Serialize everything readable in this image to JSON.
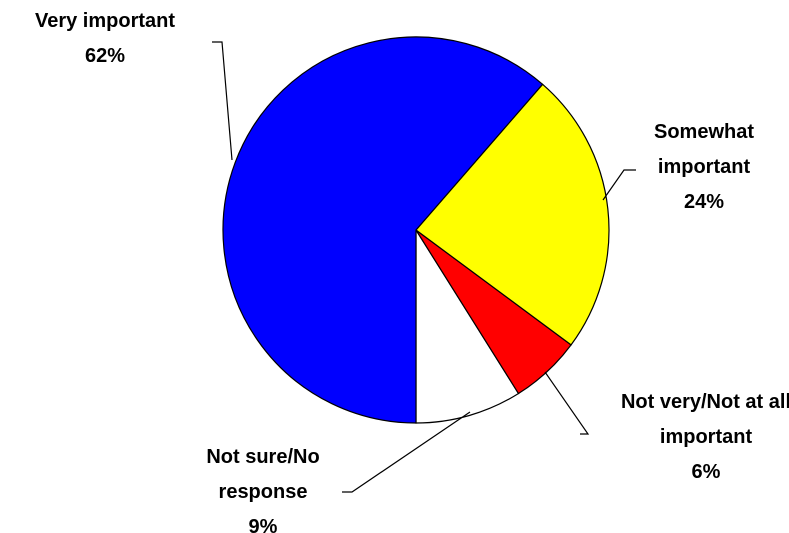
{
  "chart_data": {
    "type": "pie",
    "categories": [
      "Very important",
      "Somewhat important",
      "Not very/Not at all important",
      "Not sure/No response"
    ],
    "values": [
      62,
      24,
      6,
      9
    ],
    "value_labels": [
      "62%",
      "24%",
      "6%",
      "9%"
    ],
    "colors": [
      "#0000ff",
      "#ffff00",
      "#ff0000",
      "#ffffff"
    ]
  }
}
